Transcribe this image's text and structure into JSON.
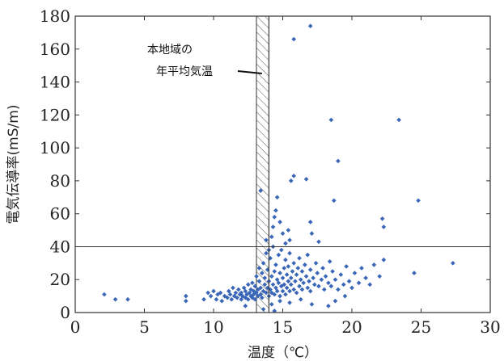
{
  "chart_data": {
    "type": "scatter",
    "xlabel": "温度（℃）",
    "ylabel": "電気伝導率(mS/m)",
    "xlim": [
      0,
      30
    ],
    "ylim": [
      0,
      180
    ],
    "x_ticks": [
      0,
      5,
      10,
      15,
      20,
      25,
      30
    ],
    "y_ticks": [
      0,
      20,
      40,
      60,
      80,
      100,
      120,
      140,
      160,
      180
    ],
    "grid": false,
    "point_color": "#3a66b8",
    "reference_lines": {
      "horizontal_y": 40,
      "vertical_x": 14,
      "hatched_band_x": [
        13.1,
        14.0
      ]
    },
    "annotation": {
      "lines": [
        "本地域の",
        "年平均気温"
      ],
      "points_to_x": 13.5
    },
    "points": [
      [
        2.1,
        11
      ],
      [
        2.9,
        8
      ],
      [
        3.8,
        8
      ],
      [
        8.0,
        10
      ],
      [
        8.0,
        7
      ],
      [
        9.3,
        8
      ],
      [
        9.6,
        12
      ],
      [
        9.8,
        10
      ],
      [
        10.0,
        13
      ],
      [
        10.2,
        8
      ],
      [
        10.3,
        11
      ],
      [
        10.5,
        12
      ],
      [
        10.6,
        7
      ],
      [
        10.8,
        10
      ],
      [
        11.0,
        9
      ],
      [
        11.1,
        13
      ],
      [
        11.2,
        11
      ],
      [
        11.3,
        8
      ],
      [
        11.4,
        15
      ],
      [
        11.5,
        10
      ],
      [
        11.6,
        12
      ],
      [
        11.7,
        9
      ],
      [
        11.8,
        14
      ],
      [
        11.9,
        11
      ],
      [
        12.0,
        8
      ],
      [
        12.0,
        12
      ],
      [
        12.1,
        10
      ],
      [
        12.2,
        15
      ],
      [
        12.3,
        9
      ],
      [
        12.3,
        13
      ],
      [
        12.4,
        11
      ],
      [
        12.5,
        17
      ],
      [
        12.5,
        8
      ],
      [
        12.6,
        12
      ],
      [
        12.7,
        14
      ],
      [
        12.7,
        10
      ],
      [
        12.8,
        18
      ],
      [
        12.8,
        9
      ],
      [
        12.9,
        13
      ],
      [
        12.9,
        11
      ],
      [
        13.0,
        16
      ],
      [
        13.0,
        8
      ],
      [
        13.1,
        22
      ],
      [
        13.1,
        12
      ],
      [
        13.2,
        14
      ],
      [
        13.2,
        10
      ],
      [
        13.3,
        19
      ],
      [
        13.3,
        27
      ],
      [
        13.4,
        11
      ],
      [
        13.4,
        15
      ],
      [
        13.5,
        24
      ],
      [
        13.5,
        9
      ],
      [
        13.6,
        13
      ],
      [
        13.6,
        30
      ],
      [
        13.7,
        17
      ],
      [
        13.7,
        21
      ],
      [
        13.8,
        12
      ],
      [
        13.8,
        36
      ],
      [
        13.9,
        15
      ],
      [
        13.9,
        26
      ],
      [
        14.0,
        10
      ],
      [
        14.0,
        19
      ],
      [
        14.1,
        14
      ],
      [
        14.1,
        33
      ],
      [
        14.2,
        22
      ],
      [
        14.2,
        12
      ],
      [
        14.3,
        17
      ],
      [
        14.3,
        40
      ],
      [
        14.4,
        25
      ],
      [
        14.4,
        11
      ],
      [
        14.5,
        15
      ],
      [
        14.5,
        29
      ],
      [
        14.6,
        20
      ],
      [
        14.6,
        13
      ],
      [
        14.7,
        35
      ],
      [
        14.7,
        18
      ],
      [
        14.8,
        24
      ],
      [
        14.8,
        10
      ],
      [
        14.9,
        16
      ],
      [
        14.9,
        38
      ],
      [
        15.0,
        21
      ],
      [
        15.0,
        13
      ],
      [
        15.1,
        27
      ],
      [
        15.1,
        17
      ],
      [
        15.2,
        32
      ],
      [
        15.2,
        11
      ],
      [
        15.3,
        23
      ],
      [
        15.3,
        15
      ],
      [
        15.4,
        19
      ],
      [
        15.4,
        28
      ],
      [
        15.5,
        13
      ],
      [
        15.5,
        36
      ],
      [
        15.6,
        21
      ],
      [
        15.6,
        17
      ],
      [
        15.7,
        25
      ],
      [
        15.8,
        14
      ],
      [
        15.8,
        30
      ],
      [
        15.9,
        19
      ],
      [
        16.0,
        23
      ],
      [
        16.0,
        12
      ],
      [
        16.1,
        27
      ],
      [
        16.2,
        16
      ],
      [
        16.2,
        33
      ],
      [
        16.3,
        20
      ],
      [
        16.4,
        14
      ],
      [
        16.4,
        25
      ],
      [
        16.5,
        18
      ],
      [
        16.6,
        29
      ],
      [
        16.7,
        22
      ],
      [
        16.8,
        15
      ],
      [
        16.8,
        35
      ],
      [
        16.9,
        19
      ],
      [
        17.0,
        26
      ],
      [
        17.0,
        13
      ],
      [
        17.2,
        21
      ],
      [
        17.3,
        17
      ],
      [
        17.4,
        30
      ],
      [
        17.5,
        24
      ],
      [
        17.6,
        16
      ],
      [
        17.8,
        20
      ],
      [
        17.9,
        27
      ],
      [
        18.0,
        14
      ],
      [
        18.1,
        22
      ],
      [
        18.3,
        18
      ],
      [
        18.4,
        31
      ],
      [
        18.5,
        16
      ],
      [
        18.6,
        25
      ],
      [
        18.8,
        20
      ],
      [
        19.0,
        14
      ],
      [
        19.2,
        23
      ],
      [
        19.4,
        17
      ],
      [
        19.6,
        28
      ],
      [
        19.8,
        19
      ],
      [
        20.0,
        15
      ],
      [
        20.2,
        24
      ],
      [
        20.5,
        18
      ],
      [
        20.7,
        27
      ],
      [
        21.0,
        21
      ],
      [
        21.3,
        17
      ],
      [
        21.6,
        29
      ],
      [
        22.0,
        22
      ],
      [
        22.3,
        32
      ],
      [
        13.4,
        74
      ],
      [
        13.8,
        44
      ],
      [
        14.0,
        38
      ],
      [
        14.2,
        46
      ],
      [
        14.3,
        52
      ],
      [
        14.4,
        58
      ],
      [
        14.5,
        62
      ],
      [
        14.6,
        70
      ],
      [
        14.8,
        55
      ],
      [
        15.0,
        48
      ],
      [
        15.2,
        42
      ],
      [
        15.4,
        50
      ],
      [
        15.5,
        44
      ],
      [
        15.6,
        80
      ],
      [
        15.8,
        83
      ],
      [
        16.7,
        81
      ],
      [
        17.0,
        55
      ],
      [
        17.1,
        48
      ],
      [
        17.6,
        43
      ],
      [
        18.7,
        68
      ],
      [
        22.2,
        57
      ],
      [
        22.3,
        52
      ],
      [
        24.8,
        68
      ],
      [
        18.5,
        117
      ],
      [
        19.0,
        92
      ],
      [
        23.4,
        117
      ],
      [
        15.8,
        166
      ],
      [
        17.0,
        174
      ],
      [
        24.5,
        24
      ],
      [
        27.3,
        30
      ],
      [
        14.2,
        5
      ],
      [
        14.8,
        7
      ],
      [
        15.5,
        6
      ],
      [
        16.3,
        8
      ],
      [
        17.1,
        5
      ],
      [
        18.3,
        4
      ],
      [
        12.3,
        4
      ],
      [
        13.6,
        2
      ],
      [
        14.4,
        1
      ],
      [
        18.8,
        7
      ],
      [
        19.5,
        10
      ]
    ]
  }
}
